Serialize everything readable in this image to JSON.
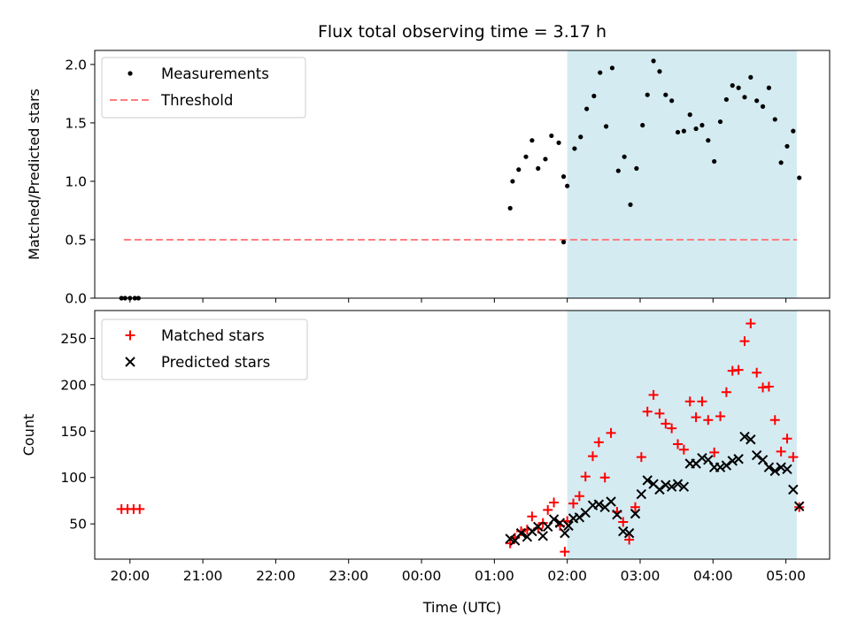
{
  "title": "Flux total observing time = 3.17 h",
  "chart_data": [
    {
      "type": "scatter",
      "ylabel": "Matched/Predicted stars",
      "ylim": [
        0,
        2.12
      ],
      "yticks": [
        0.0,
        0.5,
        1.0,
        1.5,
        2.0
      ],
      "ytick_labels": [
        "0.0",
        "0.5",
        "1.0",
        "1.5",
        "2.0"
      ],
      "legend_position": "top-left",
      "shaded_span": {
        "x_start": "02:00",
        "x_end": "05:09",
        "color": "#add8e6"
      },
      "series": [
        {
          "name": "Measurements",
          "marker": "dot",
          "color": "#000000",
          "points": [
            [
              "19:53",
              0.0
            ],
            [
              "19:56",
              0.0
            ],
            [
              "20:00",
              0.0
            ],
            [
              "20:04",
              0.0
            ],
            [
              "20:07",
              0.0
            ],
            [
              "01:13",
              0.77
            ],
            [
              "01:15",
              1.0
            ],
            [
              "01:20",
              1.1
            ],
            [
              "01:26",
              1.21
            ],
            [
              "01:31",
              1.35
            ],
            [
              "01:36",
              1.11
            ],
            [
              "01:42",
              1.19
            ],
            [
              "01:47",
              1.39
            ],
            [
              "01:53",
              1.33
            ],
            [
              "01:57",
              1.04
            ],
            [
              "01:57",
              0.48
            ],
            [
              "02:00",
              0.96
            ],
            [
              "02:06",
              1.28
            ],
            [
              "02:11",
              1.38
            ],
            [
              "02:16",
              1.62
            ],
            [
              "02:22",
              1.73
            ],
            [
              "02:27",
              1.93
            ],
            [
              "02:32",
              1.47
            ],
            [
              "02:37",
              1.97
            ],
            [
              "02:42",
              1.09
            ],
            [
              "02:47",
              1.21
            ],
            [
              "02:52",
              0.8
            ],
            [
              "02:57",
              1.11
            ],
            [
              "03:02",
              1.48
            ],
            [
              "03:06",
              1.74
            ],
            [
              "03:11",
              2.03
            ],
            [
              "03:16",
              1.94
            ],
            [
              "03:21",
              1.74
            ],
            [
              "03:26",
              1.69
            ],
            [
              "03:31",
              1.42
            ],
            [
              "03:36",
              1.43
            ],
            [
              "03:41",
              1.57
            ],
            [
              "03:46",
              1.45
            ],
            [
              "03:51",
              1.48
            ],
            [
              "03:56",
              1.35
            ],
            [
              "04:01",
              1.17
            ],
            [
              "04:06",
              1.51
            ],
            [
              "04:11",
              1.7
            ],
            [
              "04:16",
              1.82
            ],
            [
              "04:21",
              1.8
            ],
            [
              "04:26",
              1.72
            ],
            [
              "04:31",
              1.89
            ],
            [
              "04:36",
              1.69
            ],
            [
              "04:41",
              1.64
            ],
            [
              "04:46",
              1.8
            ],
            [
              "04:51",
              1.53
            ],
            [
              "04:56",
              1.16
            ],
            [
              "05:01",
              1.3
            ],
            [
              "05:06",
              1.43
            ],
            [
              "05:11",
              1.03
            ]
          ]
        },
        {
          "name": "Threshold",
          "marker": "dashed-line",
          "color": "#ff7f7f",
          "points": [
            [
              "19:55",
              0.5
            ],
            [
              "05:09",
              0.5
            ]
          ]
        }
      ]
    },
    {
      "type": "scatter",
      "xlabel": "Time (UTC)",
      "ylabel": "Count",
      "ylim": [
        12,
        280
      ],
      "yticks": [
        50,
        100,
        150,
        200,
        250
      ],
      "ytick_labels": [
        "50",
        "100",
        "150",
        "200",
        "250"
      ],
      "xticks": [
        "20:00",
        "21:00",
        "22:00",
        "23:00",
        "00:00",
        "01:00",
        "02:00",
        "03:00",
        "04:00",
        "05:00"
      ],
      "xlim": [
        "19:31",
        "05:36"
      ],
      "legend_position": "top-left",
      "shaded_span": {
        "x_start": "02:00",
        "x_end": "05:09",
        "color": "#add8e6"
      },
      "series": [
        {
          "name": "Matched stars",
          "marker": "plus",
          "color": "#ff0000",
          "points": [
            [
              "19:53",
              66
            ],
            [
              "19:58",
              66
            ],
            [
              "20:03",
              66
            ],
            [
              "20:08",
              66
            ],
            [
              "01:13",
              29
            ],
            [
              "01:17",
              35
            ],
            [
              "01:22",
              42
            ],
            [
              "01:27",
              44
            ],
            [
              "01:31",
              58
            ],
            [
              "01:36",
              45
            ],
            [
              "01:40",
              51
            ],
            [
              "01:44",
              65
            ],
            [
              "01:49",
              73
            ],
            [
              "01:54",
              48
            ],
            [
              "01:58",
              20
            ],
            [
              "02:00",
              53
            ],
            [
              "02:05",
              72
            ],
            [
              "02:10",
              80
            ],
            [
              "02:15",
              101
            ],
            [
              "02:21",
              123
            ],
            [
              "02:26",
              138
            ],
            [
              "02:31",
              100
            ],
            [
              "02:36",
              148
            ],
            [
              "02:41",
              63
            ],
            [
              "02:46",
              52
            ],
            [
              "02:51",
              33
            ],
            [
              "02:56",
              68
            ],
            [
              "03:01",
              122
            ],
            [
              "03:06",
              171
            ],
            [
              "03:11",
              189
            ],
            [
              "03:16",
              169
            ],
            [
              "03:21",
              158
            ],
            [
              "03:26",
              153
            ],
            [
              "03:31",
              136
            ],
            [
              "03:36",
              130
            ],
            [
              "03:41",
              182
            ],
            [
              "03:46",
              165
            ],
            [
              "03:51",
              182
            ],
            [
              "03:56",
              162
            ],
            [
              "04:01",
              127
            ],
            [
              "04:06",
              166
            ],
            [
              "04:11",
              192
            ],
            [
              "04:16",
              215
            ],
            [
              "04:21",
              216
            ],
            [
              "04:26",
              247
            ],
            [
              "04:31",
              266
            ],
            [
              "04:36",
              213
            ],
            [
              "04:41",
              197
            ],
            [
              "04:46",
              198
            ],
            [
              "04:51",
              162
            ],
            [
              "04:56",
              128
            ],
            [
              "05:01",
              142
            ],
            [
              "05:06",
              122
            ],
            [
              "05:11",
              68
            ]
          ]
        },
        {
          "name": "Predicted stars",
          "marker": "x",
          "color": "#000000",
          "points": [
            [
              "01:13",
              34
            ],
            [
              "01:17",
              32
            ],
            [
              "01:22",
              40
            ],
            [
              "01:27",
              36
            ],
            [
              "01:31",
              42
            ],
            [
              "01:36",
              47
            ],
            [
              "01:40",
              37
            ],
            [
              "01:44",
              47
            ],
            [
              "01:49",
              55
            ],
            [
              "01:54",
              51
            ],
            [
              "01:58",
              40
            ],
            [
              "02:01",
              48
            ],
            [
              "02:05",
              56
            ],
            [
              "02:10",
              57
            ],
            [
              "02:15",
              62
            ],
            [
              "02:21",
              70
            ],
            [
              "02:26",
              71
            ],
            [
              "02:31",
              68
            ],
            [
              "02:36",
              74
            ],
            [
              "02:41",
              60
            ],
            [
              "02:46",
              42
            ],
            [
              "02:51",
              40
            ],
            [
              "02:56",
              61
            ],
            [
              "03:01",
              82
            ],
            [
              "03:06",
              97
            ],
            [
              "03:11",
              93
            ],
            [
              "03:16",
              87
            ],
            [
              "03:21",
              92
            ],
            [
              "03:26",
              90
            ],
            [
              "03:31",
              93
            ],
            [
              "03:36",
              90
            ],
            [
              "03:41",
              115
            ],
            [
              "03:46",
              115
            ],
            [
              "03:51",
              121
            ],
            [
              "03:56",
              119
            ],
            [
              "04:01",
              111
            ],
            [
              "04:06",
              111
            ],
            [
              "04:11",
              113
            ],
            [
              "04:16",
              118
            ],
            [
              "04:21",
              120
            ],
            [
              "04:26",
              144
            ],
            [
              "04:31",
              141
            ],
            [
              "04:36",
              124
            ],
            [
              "04:41",
              119
            ],
            [
              "04:46",
              111
            ],
            [
              "04:51",
              107
            ],
            [
              "04:56",
              111
            ],
            [
              "05:01",
              109
            ],
            [
              "05:06",
              87
            ],
            [
              "05:11",
              69
            ]
          ]
        }
      ]
    }
  ]
}
